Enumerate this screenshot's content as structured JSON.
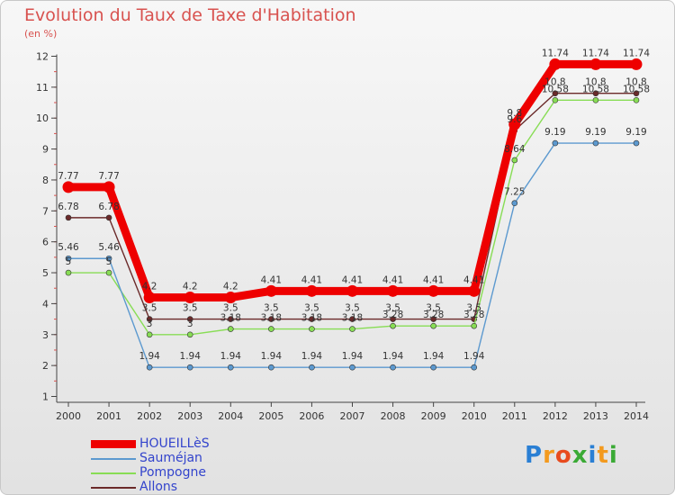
{
  "chart_data": {
    "type": "line",
    "title": "Evolution du Taux de Taxe d'Habitation",
    "subtitle": "(en %)",
    "x": [
      "2000",
      "2001",
      "2002",
      "2003",
      "2004",
      "2005",
      "2006",
      "2007",
      "2008",
      "2009",
      "2010",
      "2011",
      "2012",
      "2013",
      "2014"
    ],
    "ylim": [
      0.5,
      12
    ],
    "yticks": [
      1,
      2,
      3,
      4,
      5,
      6,
      7,
      8,
      9,
      10,
      11,
      12
    ],
    "grid": false,
    "legend_position": "bottom-left",
    "series": [
      {
        "name": "Allons",
        "color": "#6b2a2a",
        "values": [
          6.78,
          6.78,
          3.5,
          3.5,
          3.5,
          3.5,
          3.5,
          3.5,
          3.5,
          3.5,
          3.5,
          9.6,
          10.8,
          10.8,
          10.8
        ],
        "labels": [
          "6.78",
          "6.78",
          "3.5",
          "3.5",
          "3.5",
          "3.5",
          "3.5",
          "3.5",
          "3.5",
          "3.5",
          "3.5",
          "9.6",
          "10.8",
          "10.8",
          "10.8"
        ]
      },
      {
        "name": "Pompogne",
        "color": "#88dd55",
        "values": [
          5,
          5,
          3,
          3,
          3.18,
          3.18,
          3.18,
          3.18,
          3.28,
          3.28,
          3.28,
          8.64,
          10.58,
          10.58,
          10.58
        ],
        "labels": [
          "5",
          "5",
          "3",
          "3",
          "3.18",
          "3.18",
          "3.18",
          "3.18",
          "3.28",
          "3.28",
          "3.28",
          "8.64",
          "10.58",
          "10.58",
          "10.58"
        ]
      },
      {
        "name": "Sauméjan",
        "color": "#5c99cf",
        "values": [
          5.46,
          5.46,
          1.94,
          1.94,
          1.94,
          1.94,
          1.94,
          1.94,
          1.94,
          1.94,
          1.94,
          7.25,
          9.19,
          9.19,
          9.19
        ],
        "labels": [
          "5.46",
          "5.46",
          "1.94",
          "1.94",
          "1.94",
          "1.94",
          "1.94",
          "1.94",
          "1.94",
          "1.94",
          "1.94",
          "7.25",
          "9.19",
          "9.19",
          "9.19"
        ]
      },
      {
        "name": "HOUEILLèS",
        "color": "#ee0000",
        "values": [
          7.77,
          7.77,
          4.2,
          4.2,
          4.2,
          4.41,
          4.41,
          4.41,
          4.41,
          4.41,
          4.41,
          9.8,
          11.74,
          11.74,
          11.74
        ],
        "labels": [
          "7.77",
          "7.77",
          "4.2",
          "4.2",
          "4.2",
          "4.41",
          "4.41",
          "4.41",
          "4.41",
          "4.41",
          "4.41",
          "9.8",
          "11.74",
          "11.74",
          "11.74"
        ]
      }
    ]
  },
  "legend": {
    "items": [
      {
        "label": "HOUEILLèS",
        "color": "#ee0000"
      },
      {
        "label": "Sauméjan",
        "color": "#5c99cf"
      },
      {
        "label": "Pompogne",
        "color": "#88dd55"
      },
      {
        "label": "Allons",
        "color": "#6b2a2a"
      }
    ]
  },
  "logo": {
    "letters": [
      "P",
      "r",
      "o",
      "x",
      "i",
      "t",
      "i"
    ],
    "colors": [
      "#2a7fd4",
      "#f39a1e",
      "#e84b1e",
      "#3aaa35",
      "#2a7fd4",
      "#f39a1e",
      "#3aaa35"
    ]
  }
}
